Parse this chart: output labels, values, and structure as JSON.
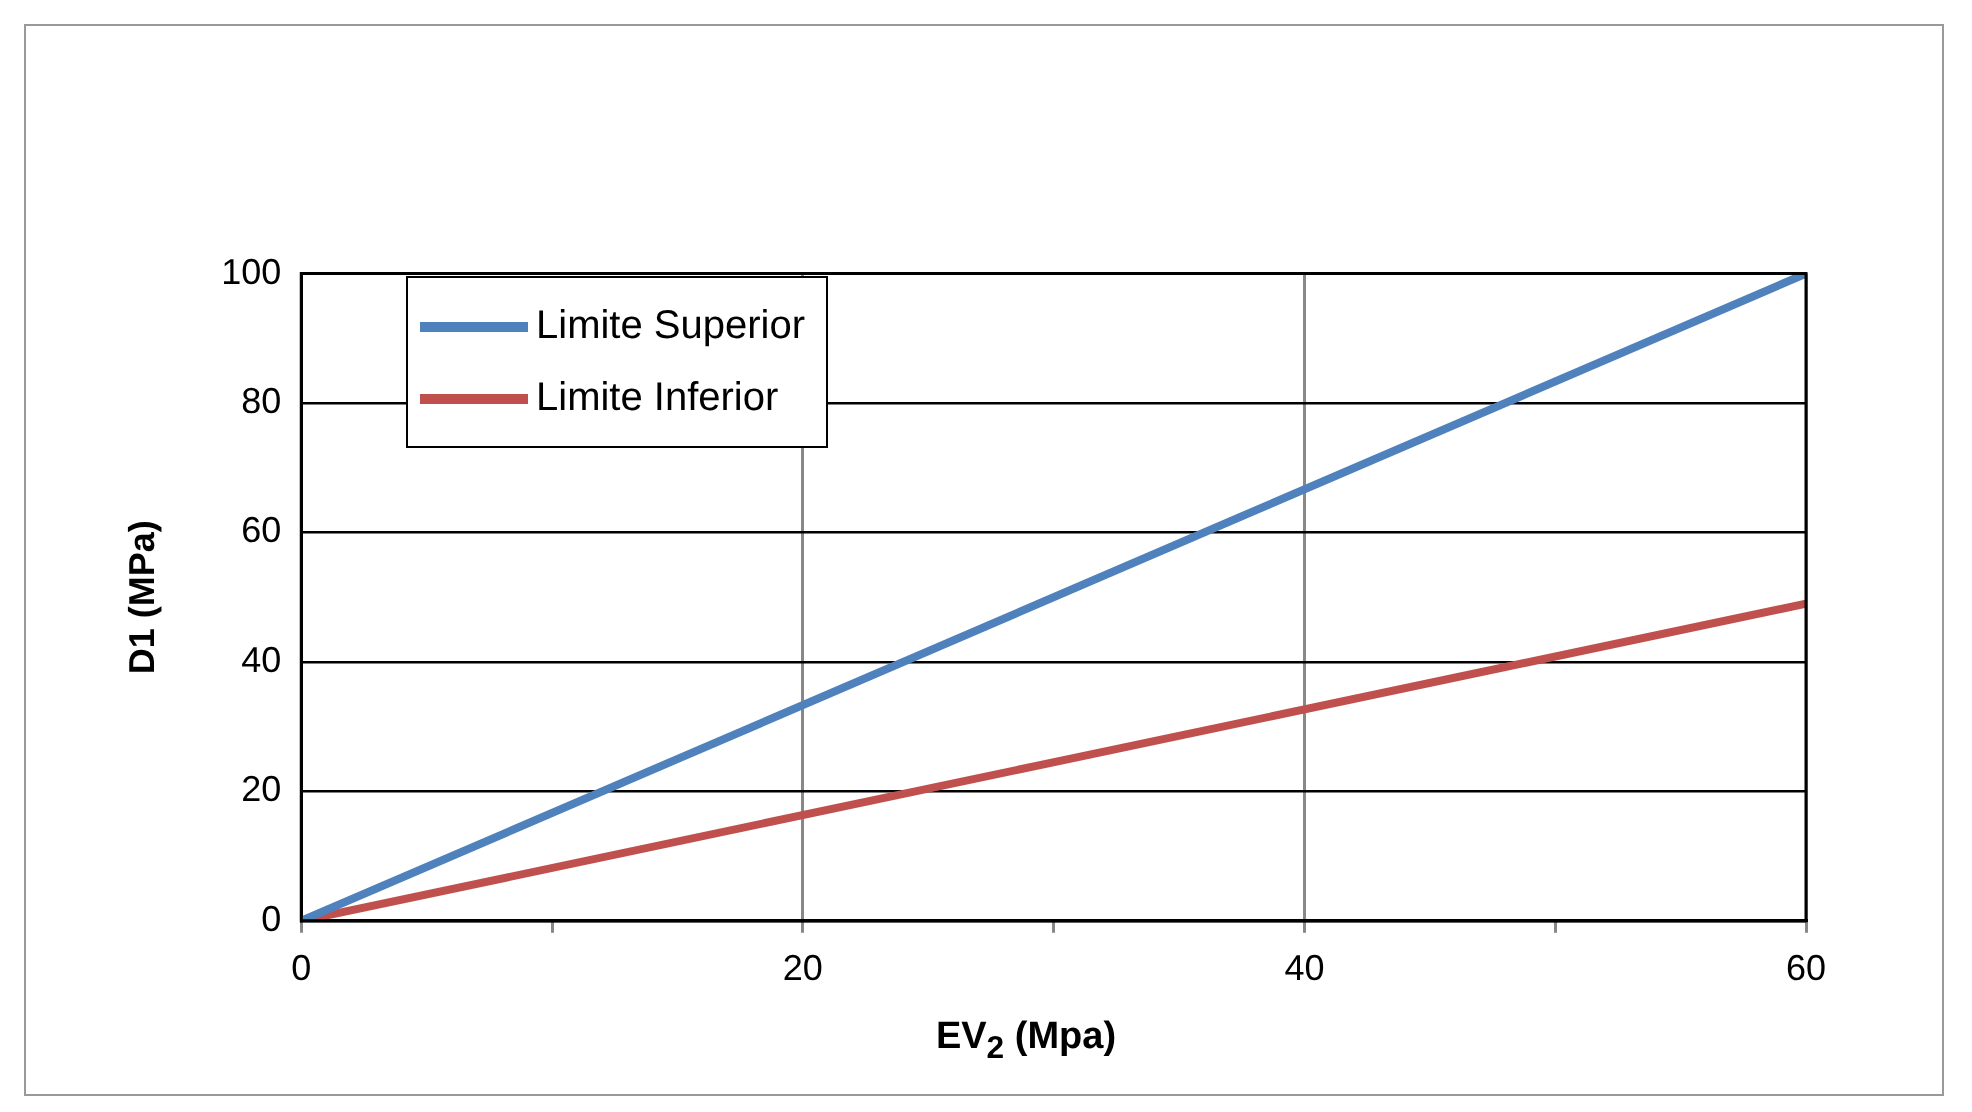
{
  "chart_data": {
    "type": "line",
    "xlabel": "EV$_{2}$ (Mpa)",
    "ylabel": "D1 (MPa)",
    "x": [
      0,
      60
    ],
    "series": [
      {
        "name": "Limite Superior",
        "color": "#4f81bd",
        "values": [
          0,
          100
        ]
      },
      {
        "name": "Limite Inferior",
        "color": "#c0504d",
        "values": [
          0,
          49
        ]
      }
    ],
    "xlim": [
      0,
      60
    ],
    "xticks": [
      0,
      {
        "value": 10,
        "label": null
      },
      20,
      {
        "value": 30,
        "label": null
      },
      40,
      {
        "value": 50,
        "label": null
      },
      60
    ],
    "ylim": [
      0,
      100
    ],
    "yticks": [
      0,
      20,
      40,
      60,
      80,
      100
    ],
    "grid": true,
    "legend": "top left",
    "marker": "none",
    "line_style": "solid"
  }
}
